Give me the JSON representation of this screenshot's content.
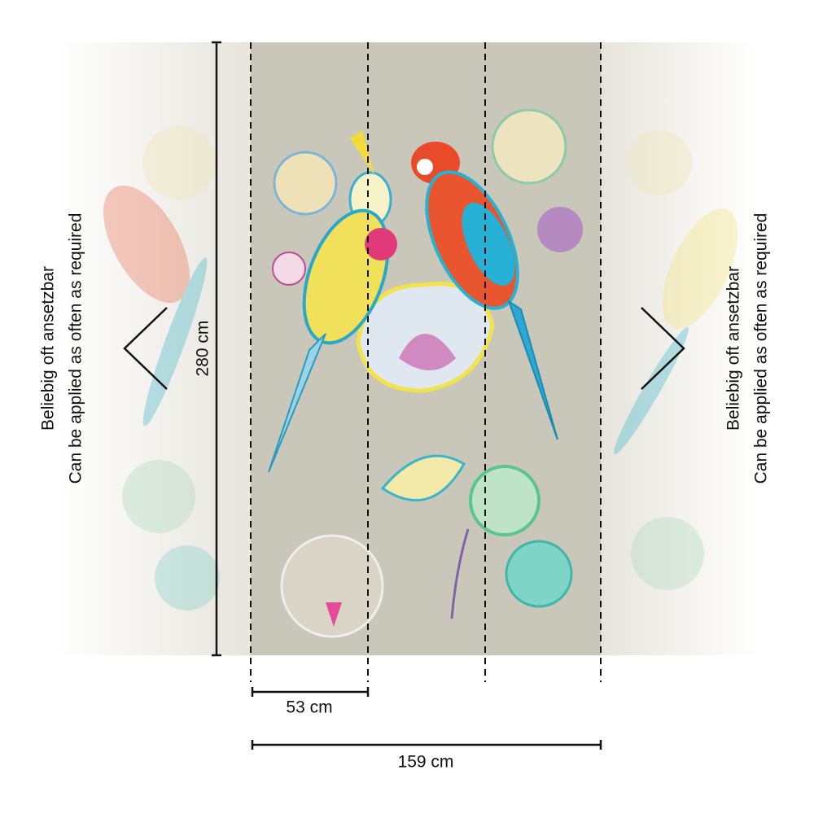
{
  "dimensions": {
    "height": "280 cm",
    "panel_width": "53 cm",
    "total_width": "159 cm"
  },
  "notes": {
    "left": [
      "Beliebig oft ansetzbar",
      "Can be applied as often as required"
    ],
    "right": [
      "Beliebig oft ansetzbar",
      "Can be applied as often as required"
    ]
  }
}
